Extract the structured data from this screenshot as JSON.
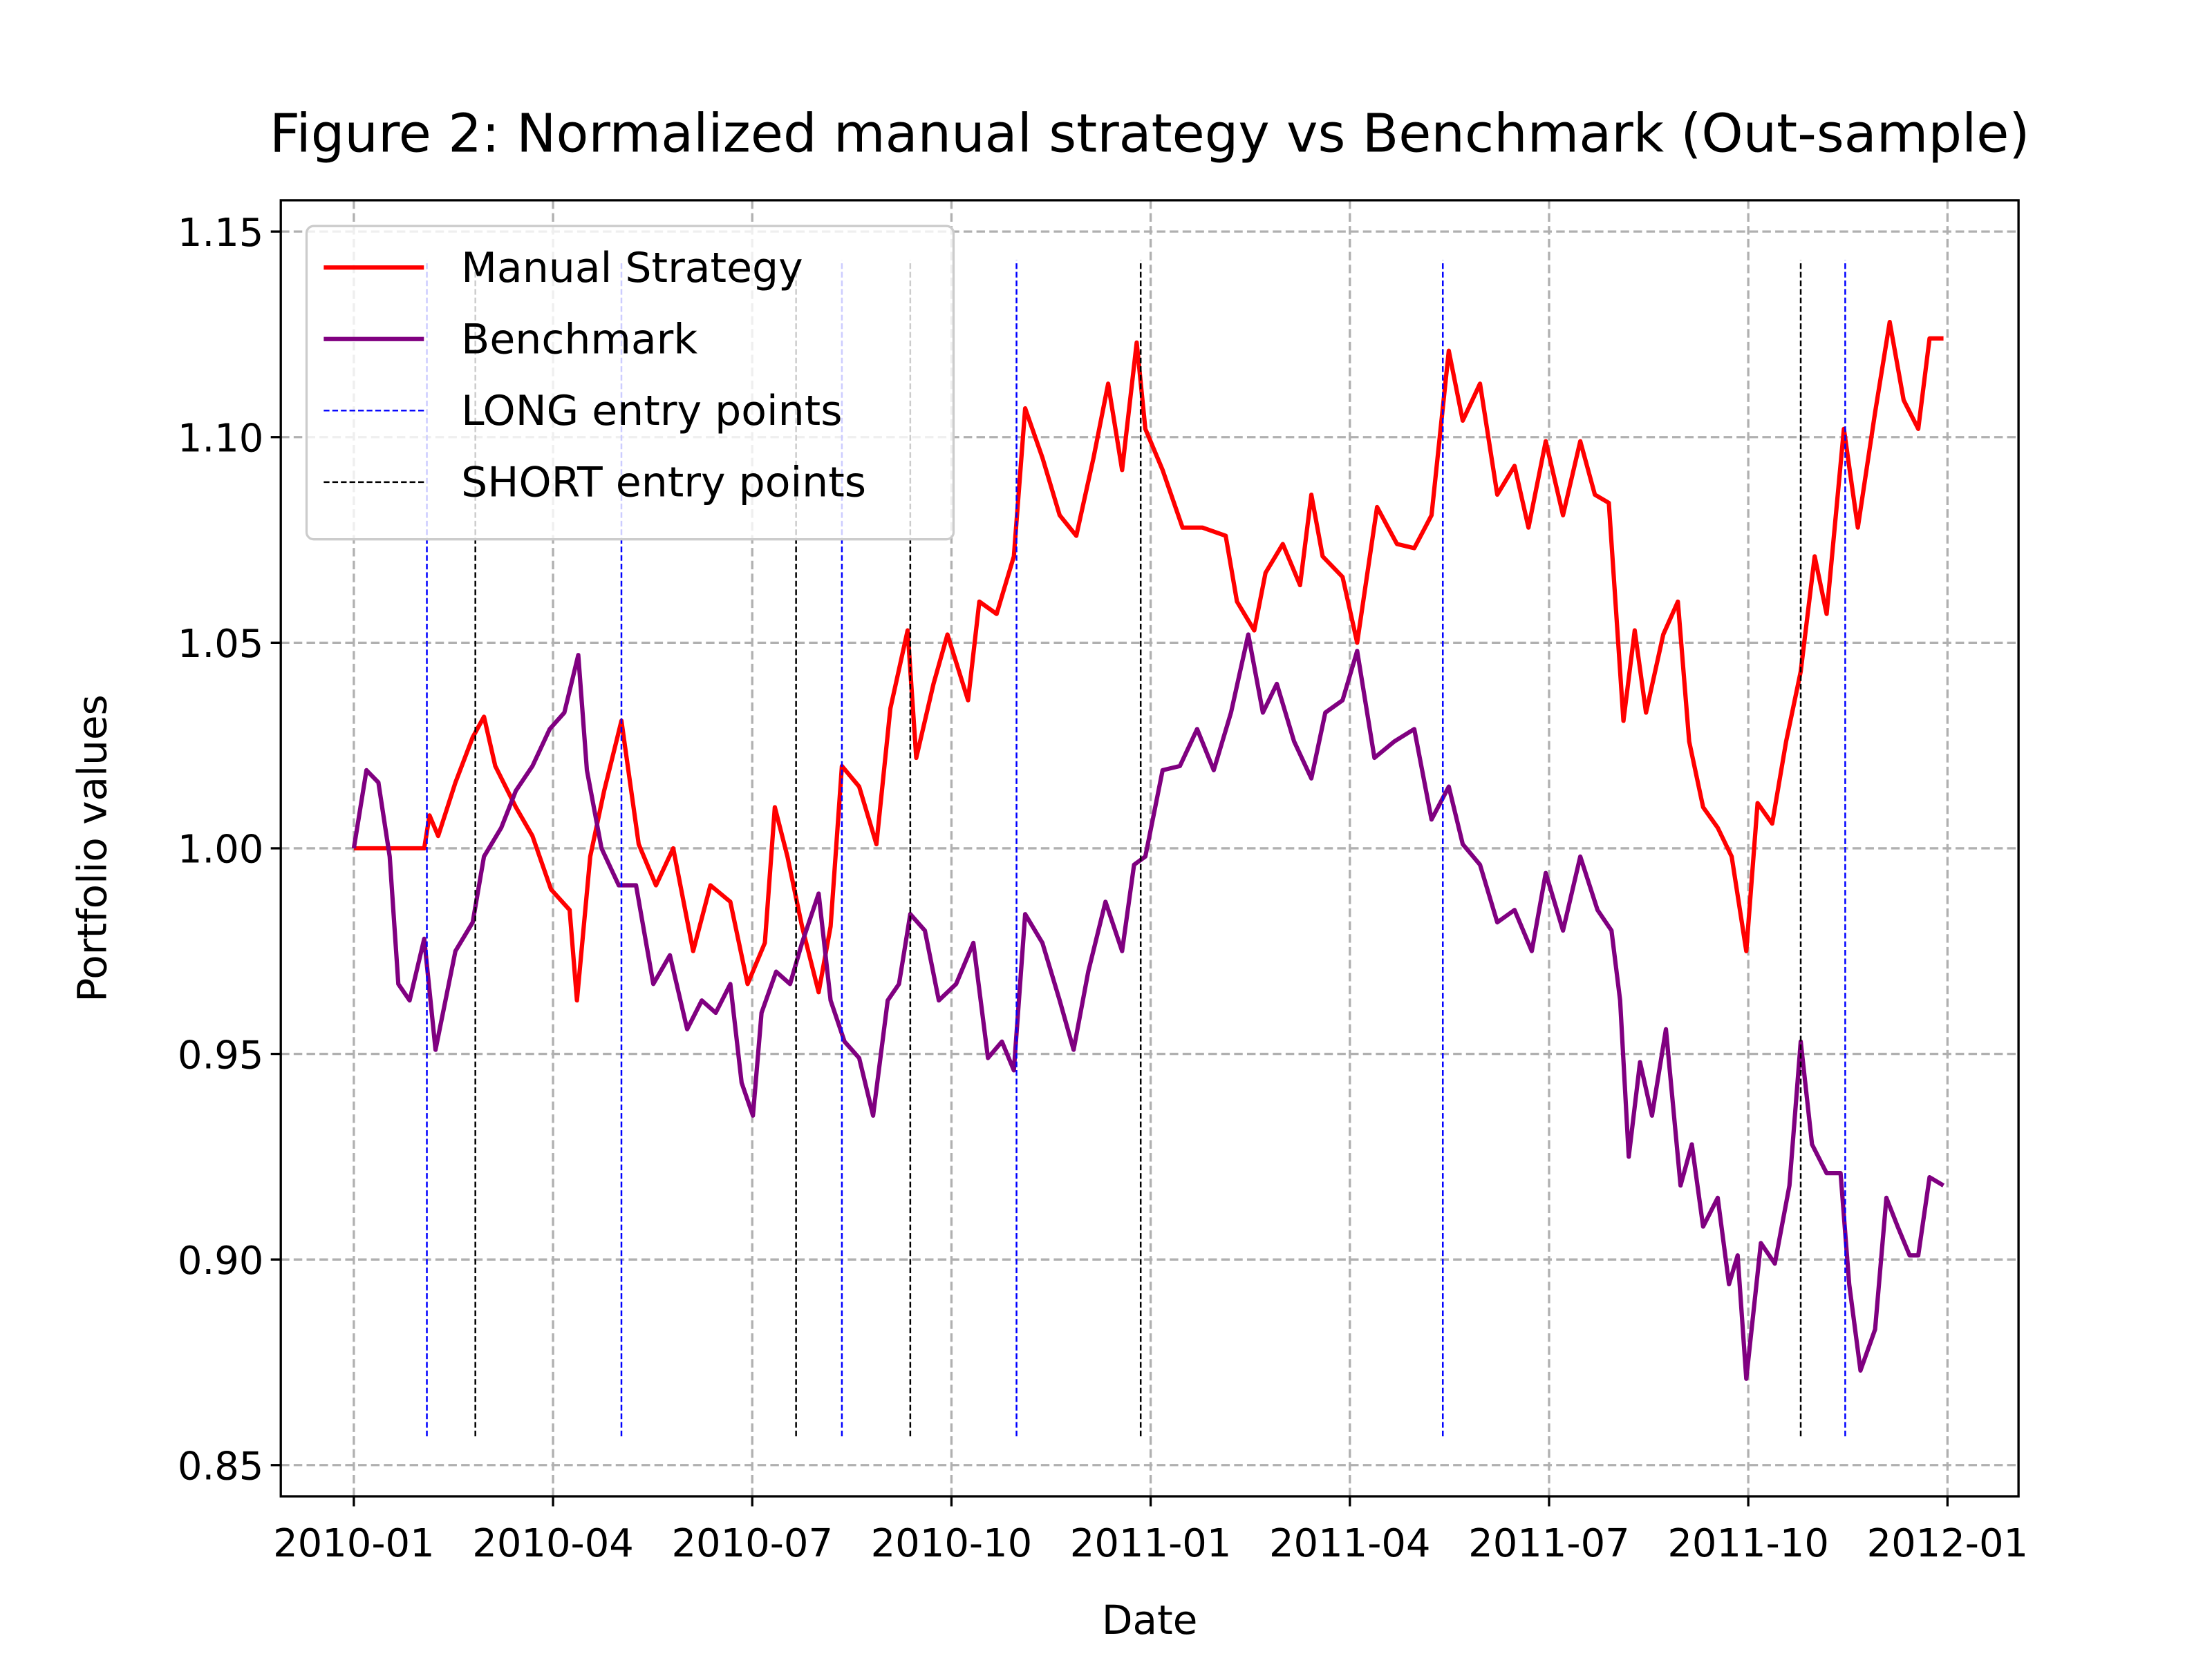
{
  "chart_data": {
    "type": "line",
    "title": "Figure 2: Normalized manual strategy vs Benchmark (Out-sample)",
    "x_label": "Date",
    "y_label": "Portfolio values",
    "xlim": [
      -1.1,
      25.07
    ],
    "ylim": [
      0.8424,
      1.1576
    ],
    "xticks": [
      {
        "value": 0,
        "label": "2010-01"
      },
      {
        "value": 3,
        "label": "2010-04"
      },
      {
        "value": 6,
        "label": "2010-07"
      },
      {
        "value": 9,
        "label": "2010-10"
      },
      {
        "value": 12,
        "label": "2011-01"
      },
      {
        "value": 15,
        "label": "2011-04"
      },
      {
        "value": 18,
        "label": "2011-07"
      },
      {
        "value": 21,
        "label": "2011-10"
      },
      {
        "value": 24,
        "label": "2012-01"
      }
    ],
    "yticks": [
      0.85,
      {
        "value": 0.9,
        "label": "0.90"
      },
      0.95,
      {
        "value": 1.0,
        "label": "1.00"
      },
      1.05,
      {
        "value": 1.1,
        "label": "1.10"
      },
      1.15
    ],
    "grid": true,
    "legend": "upper left",
    "series": [
      {
        "name": "Manual Strategy",
        "color": "#ff0000",
        "x": [
          0,
          1.06,
          1.14,
          1.27,
          1.53,
          1.79,
          1.96,
          2.13,
          2.44,
          2.69,
          2.97,
          3.25,
          3.36,
          3.56,
          3.77,
          4.03,
          4.29,
          4.55,
          4.81,
          5.11,
          5.37,
          5.67,
          5.93,
          6.19,
          6.34,
          6.53,
          6.75,
          7.0,
          7.18,
          7.35,
          7.61,
          7.87,
          8.08,
          8.34,
          8.47,
          8.73,
          8.94,
          9.25,
          9.42,
          9.68,
          9.94,
          10.11,
          10.37,
          10.63,
          10.88,
          11.14,
          11.36,
          11.57,
          11.79,
          11.92,
          12.18,
          12.48,
          12.78,
          13.13,
          13.3,
          13.56,
          13.73,
          13.99,
          14.25,
          14.42,
          14.59,
          14.89,
          15.11,
          15.41,
          15.71,
          15.97,
          16.23,
          16.49,
          16.7,
          16.96,
          17.22,
          17.48,
          17.69,
          17.95,
          18.21,
          18.47,
          18.69,
          18.9,
          19.12,
          19.29,
          19.46,
          19.72,
          19.94,
          20.11,
          20.32,
          20.54,
          20.75,
          20.97,
          21.14,
          21.36,
          21.57,
          21.79,
          22.0,
          22.18,
          22.44,
          22.65,
          22.91,
          23.13,
          23.34,
          23.56,
          23.73,
          23.94
        ],
        "values": [
          1.0,
          1.0,
          1.008,
          1.003,
          1.016,
          1.027,
          1.032,
          1.02,
          1.01,
          1.003,
          0.99,
          0.985,
          0.963,
          0.998,
          1.014,
          1.031,
          1.001,
          0.991,
          1.0,
          0.975,
          0.991,
          0.987,
          0.967,
          0.977,
          1.01,
          0.998,
          0.981,
          0.965,
          0.981,
          1.02,
          1.015,
          1.001,
          1.034,
          1.053,
          1.022,
          1.04,
          1.052,
          1.036,
          1.06,
          1.057,
          1.071,
          1.107,
          1.095,
          1.081,
          1.076,
          1.095,
          1.113,
          1.092,
          1.123,
          1.102,
          1.092,
          1.078,
          1.078,
          1.076,
          1.06,
          1.053,
          1.067,
          1.074,
          1.064,
          1.086,
          1.071,
          1.066,
          1.05,
          1.083,
          1.074,
          1.073,
          1.081,
          1.121,
          1.104,
          1.113,
          1.086,
          1.093,
          1.078,
          1.099,
          1.081,
          1.099,
          1.086,
          1.084,
          1.031,
          1.053,
          1.033,
          1.052,
          1.06,
          1.026,
          1.01,
          1.005,
          0.998,
          0.975,
          1.011,
          1.006,
          1.026,
          1.043,
          1.071,
          1.057,
          1.102,
          1.078,
          1.106,
          1.128,
          1.109,
          1.102,
          1.124,
          1.124
        ]
      },
      {
        "name": "Benchmark",
        "color": "#800080",
        "x": [
          0,
          0.19,
          0.37,
          0.54,
          0.67,
          0.84,
          1.06,
          1.23,
          1.53,
          1.79,
          1.96,
          2.22,
          2.44,
          2.69,
          2.95,
          3.17,
          3.38,
          3.51,
          3.73,
          3.99,
          4.25,
          4.51,
          4.76,
          5.02,
          5.24,
          5.45,
          5.67,
          5.84,
          6.01,
          6.14,
          6.36,
          6.57,
          6.75,
          7.0,
          7.18,
          7.39,
          7.61,
          7.82,
          8.04,
          8.21,
          8.38,
          8.6,
          8.81,
          9.07,
          9.33,
          9.55,
          9.76,
          9.94,
          10.11,
          10.37,
          10.63,
          10.84,
          11.06,
          11.32,
          11.57,
          11.75,
          11.92,
          12.18,
          12.44,
          12.7,
          12.95,
          13.21,
          13.47,
          13.69,
          13.9,
          14.16,
          14.42,
          14.63,
          14.89,
          15.11,
          15.37,
          15.67,
          15.97,
          16.23,
          16.49,
          16.7,
          16.96,
          17.22,
          17.48,
          17.74,
          17.95,
          18.21,
          18.47,
          18.73,
          18.94,
          19.07,
          19.2,
          19.37,
          19.55,
          19.76,
          19.98,
          20.15,
          20.32,
          20.54,
          20.71,
          20.84,
          20.97,
          21.19,
          21.4,
          21.62,
          21.79,
          21.96,
          22.18,
          22.39,
          22.52,
          22.69,
          22.91,
          23.08,
          23.25,
          23.43,
          23.56,
          23.73,
          23.94
        ],
        "values": [
          1.0,
          1.019,
          1.016,
          0.998,
          0.967,
          0.963,
          0.978,
          0.951,
          0.975,
          0.982,
          0.998,
          1.005,
          1.014,
          1.02,
          1.029,
          1.033,
          1.047,
          1.019,
          1.0,
          0.991,
          0.991,
          0.967,
          0.974,
          0.956,
          0.963,
          0.96,
          0.967,
          0.943,
          0.935,
          0.96,
          0.97,
          0.967,
          0.977,
          0.989,
          0.963,
          0.953,
          0.949,
          0.935,
          0.963,
          0.967,
          0.984,
          0.98,
          0.963,
          0.967,
          0.977,
          0.949,
          0.953,
          0.946,
          0.984,
          0.977,
          0.963,
          0.951,
          0.97,
          0.987,
          0.975,
          0.996,
          0.998,
          1.019,
          1.02,
          1.029,
          1.019,
          1.033,
          1.052,
          1.033,
          1.04,
          1.026,
          1.017,
          1.033,
          1.036,
          1.048,
          1.022,
          1.026,
          1.029,
          1.007,
          1.015,
          1.001,
          0.996,
          0.982,
          0.985,
          0.975,
          0.994,
          0.98,
          0.998,
          0.985,
          0.98,
          0.963,
          0.925,
          0.948,
          0.935,
          0.956,
          0.918,
          0.928,
          0.908,
          0.915,
          0.894,
          0.901,
          0.871,
          0.904,
          0.899,
          0.918,
          0.953,
          0.928,
          0.921,
          0.921,
          0.894,
          0.873,
          0.883,
          0.915,
          0.908,
          0.901,
          0.901,
          0.92,
          0.918
        ]
      }
    ],
    "entry_lines": [
      {
        "name": "LONG entry points",
        "color": "#0000ff",
        "linestyle": "dashed",
        "x": [
          1.1,
          4.03,
          7.35,
          9.98,
          16.4,
          22.46
        ],
        "ymin": 0.857,
        "ymax": 1.143
      },
      {
        "name": "SHORT entry points",
        "color": "#000000",
        "linestyle": "dashed",
        "x": [
          1.83,
          6.66,
          8.38,
          11.85,
          21.79
        ],
        "ymin": 0.857,
        "ymax": 1.143
      }
    ]
  }
}
